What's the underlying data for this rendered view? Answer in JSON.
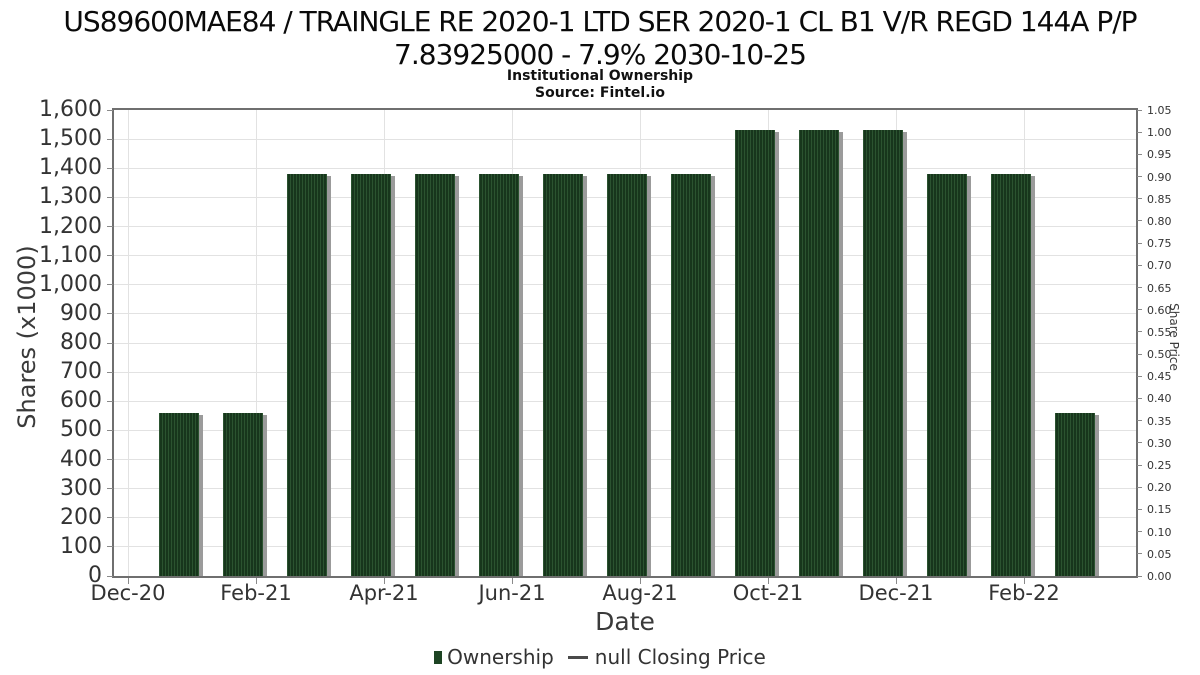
{
  "header": {
    "title_line1": "US89600MAE84 / TRAINGLE RE 2020-1 LTD SER 2020-1 CL B1 V/R REGD 144A P/P",
    "title_line2": "7.83925000 - 7.9% 2030-10-25",
    "subtitle": "Institutional Ownership",
    "source": "Source: Fintel.io"
  },
  "legend": {
    "ownership_label": "Ownership",
    "price_label": "null Closing Price"
  },
  "colors": {
    "bar_base": "#17361c",
    "bar_stripe": "#2b5330",
    "bar_shadow": "#9b9b9b",
    "legend_square": "#1d4423",
    "legend_dash": "#4a4a4a",
    "grid": "#e2e2e2",
    "axis_border": "#6f6f6f",
    "tick": "#8a8a8a",
    "tick_text": "#333333"
  },
  "chart_data": {
    "type": "bar",
    "title": "Institutional Ownership",
    "subtitle": "Source: Fintel.io",
    "xlabel": "Date",
    "ylabel_left": "Shares (x1000)",
    "ylabel_right": "Share Price",
    "grid": true,
    "legend_position": "bottom",
    "y_left": {
      "min": 0,
      "max": 1600,
      "step": 100
    },
    "y_right": {
      "min": 0,
      "max": 1.05,
      "step": 0.05
    },
    "x_months": [
      "Dec-20",
      "Jan-21",
      "Feb-21",
      "Mar-21",
      "Apr-21",
      "May-21",
      "Jun-21",
      "Jul-21",
      "Aug-21",
      "Sep-21",
      "Oct-21",
      "Nov-21",
      "Dec-21",
      "Jan-22",
      "Feb-22",
      "Mar-22"
    ],
    "x_tick_labels": [
      "Dec-20",
      "Feb-21",
      "Apr-21",
      "Jun-21",
      "Aug-21",
      "Oct-21",
      "Dec-21",
      "Feb-22"
    ],
    "x_label_every": 2,
    "series": [
      {
        "name": "Ownership",
        "type": "bar",
        "categories": [
          "Jan-21",
          "Feb-21",
          "Mar-21",
          "Apr-21",
          "May-21",
          "Jun-21",
          "Jul-21",
          "Aug-21",
          "Sep-21",
          "Oct-21",
          "Nov-21",
          "Dec-21",
          "Jan-22",
          "Feb-22",
          "Mar-22"
        ],
        "values": [
          560,
          560,
          1380,
          1380,
          1380,
          1380,
          1380,
          1380,
          1380,
          1530,
          1530,
          1530,
          1380,
          1380,
          560
        ]
      },
      {
        "name": "null Closing Price",
        "type": "line",
        "categories": [],
        "values": []
      }
    ]
  }
}
